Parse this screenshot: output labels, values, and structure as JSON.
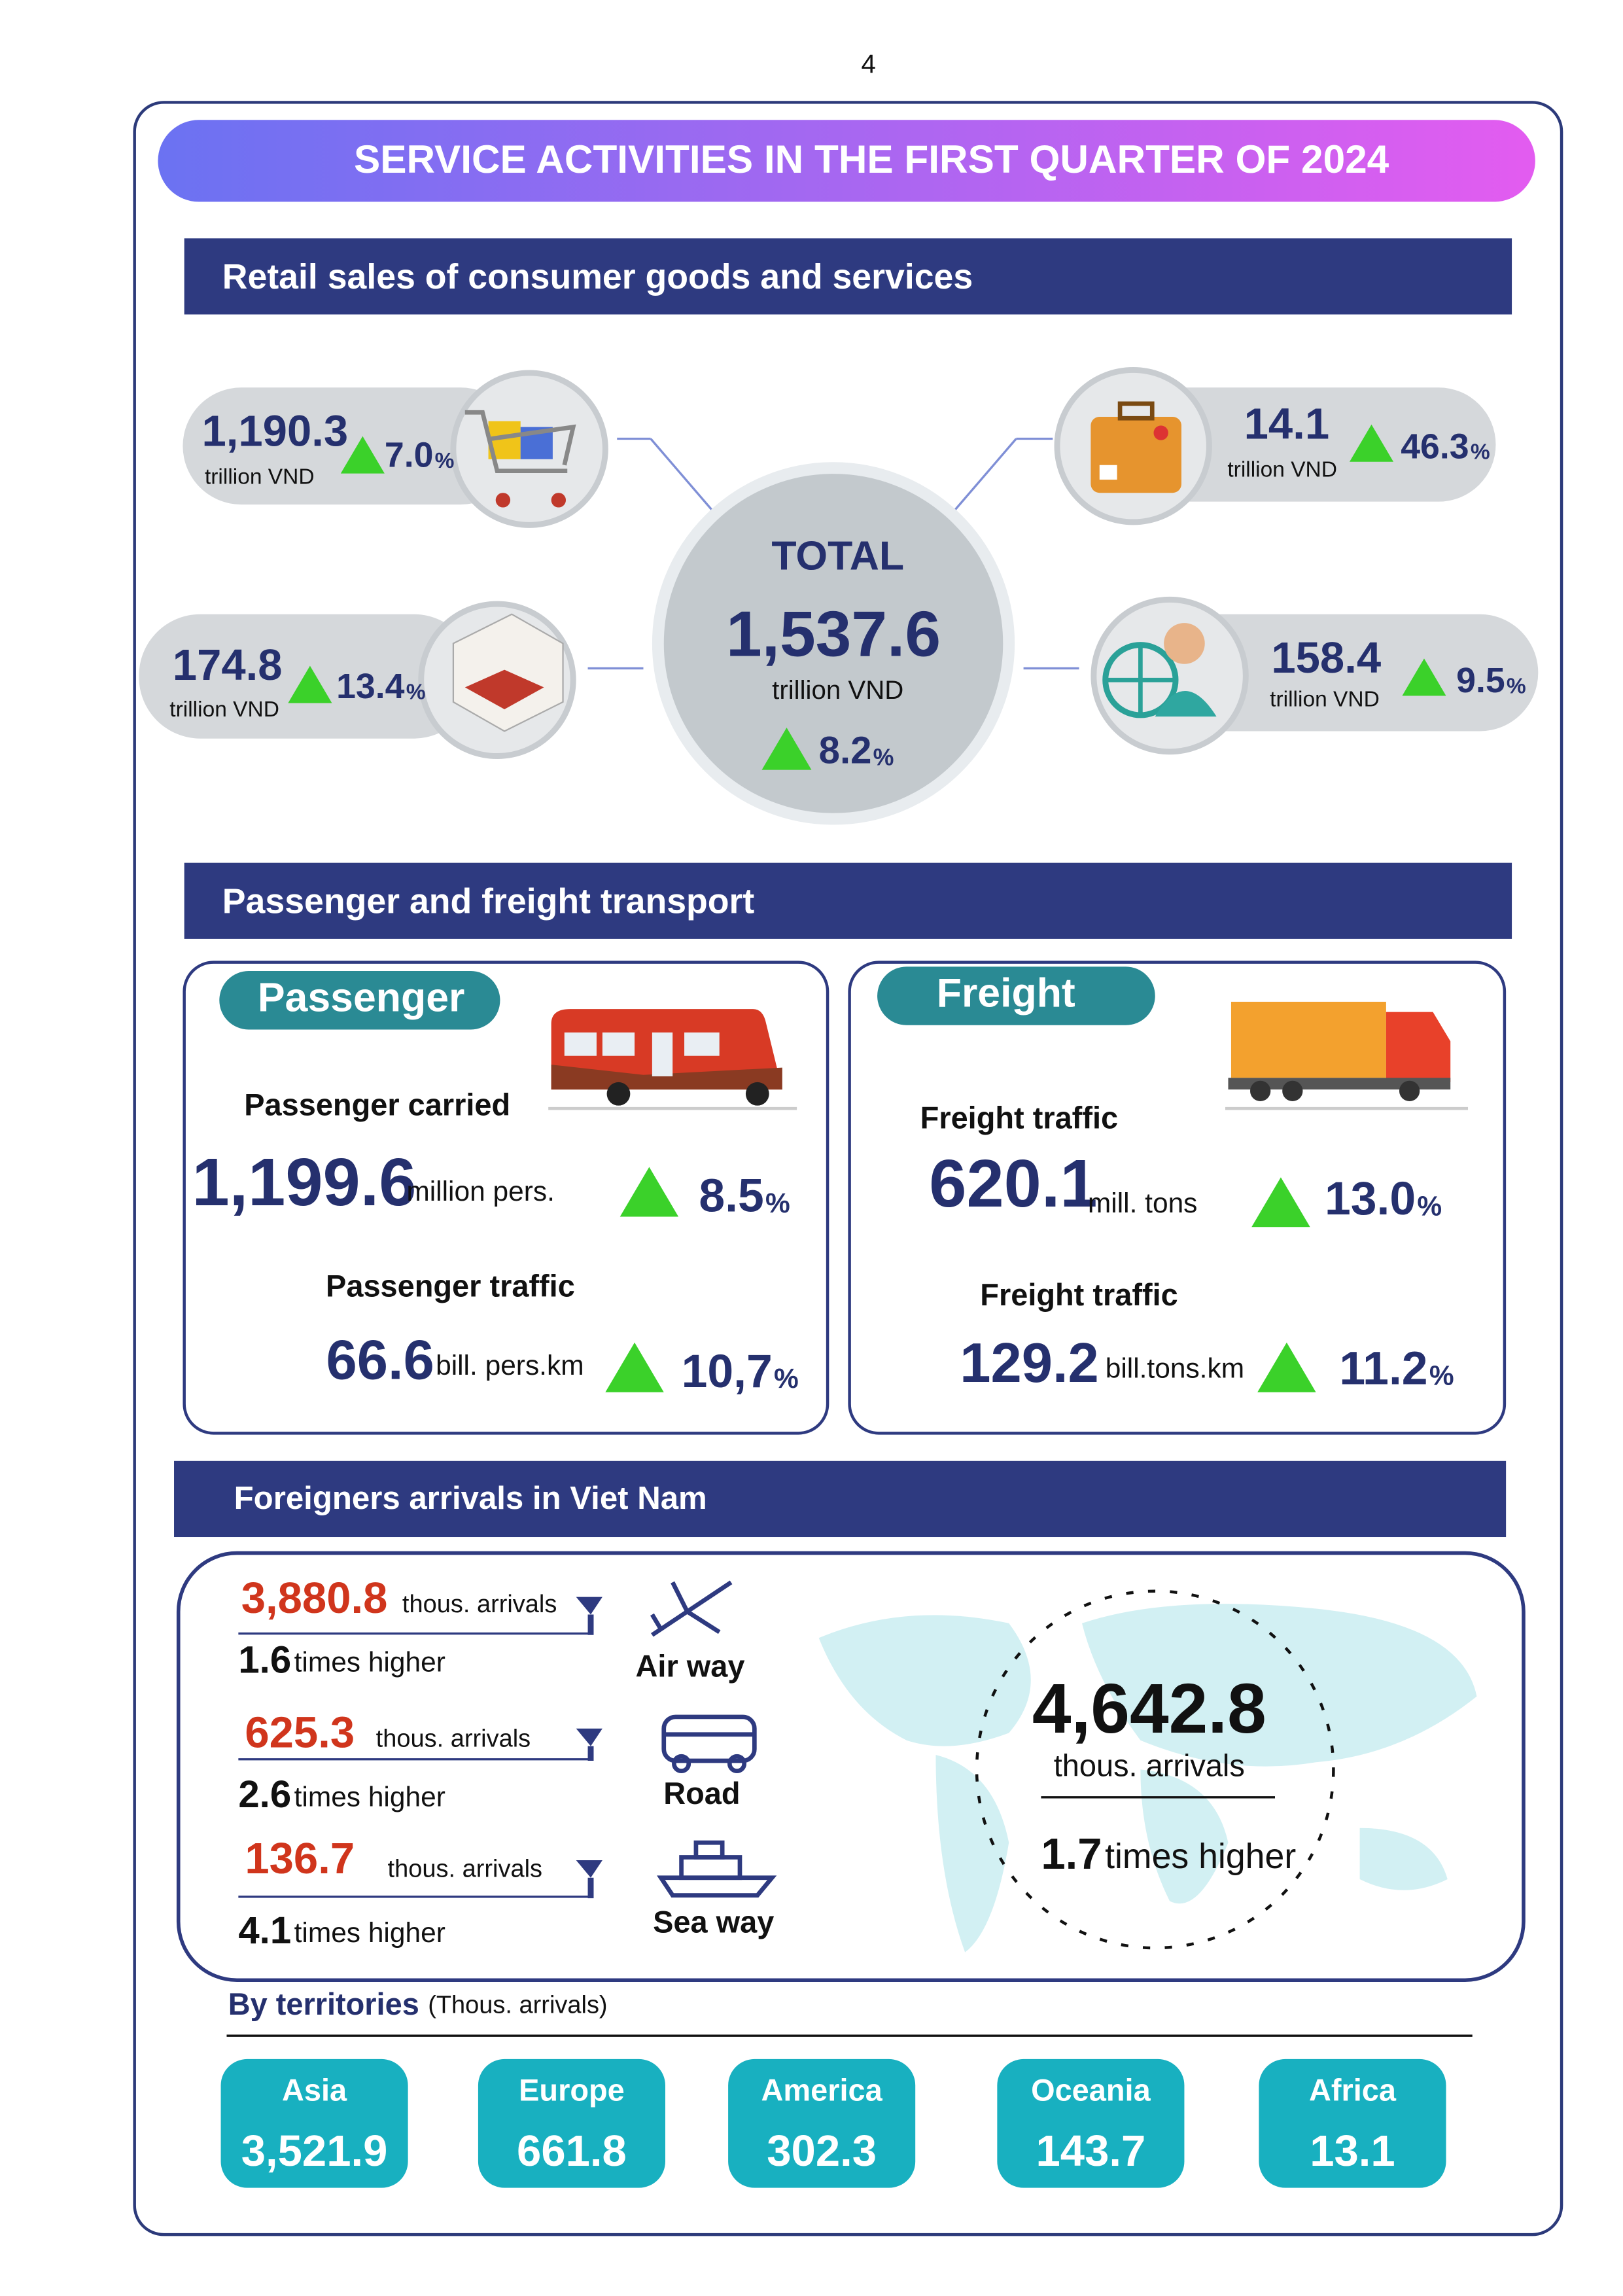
{
  "page_number": "4",
  "title": "SERVICE ACTIVITIES IN THE FIRST QUARTER OF 2024",
  "retail": {
    "heading": "Retail sales of consumer goods and services",
    "total": {
      "label": "TOTAL",
      "value": "1,537.6",
      "unit": "trillion VND",
      "change": "8.2",
      "change_unit": "%"
    },
    "items": [
      {
        "value": "1,190.3",
        "unit": "trillion VND",
        "change": "7.0",
        "change_unit": "%"
      },
      {
        "value": "174.8",
        "unit": "trillion VND",
        "change": "13.4",
        "change_unit": "%"
      },
      {
        "value": "14.1",
        "unit": "trillion VND",
        "change": "46.3",
        "change_unit": "%"
      },
      {
        "value": "158.4",
        "unit": "trillion VND",
        "change": "9.5",
        "change_unit": "%"
      }
    ]
  },
  "transport": {
    "heading": "Passenger and freight transport",
    "passenger": {
      "label": "Passenger",
      "items": [
        {
          "label": "Passenger carried",
          "value": "1,199.6",
          "unit": "million pers.",
          "change": "8.5",
          "change_unit": "%"
        },
        {
          "label": "Passenger traffic",
          "value": "66.6",
          "unit": "bill. pers.km",
          "change": "10,7",
          "change_unit": "%"
        }
      ]
    },
    "freight": {
      "label": "Freight",
      "items": [
        {
          "label": "Freight traffic",
          "value": "620.1",
          "unit": "mill. tons",
          "change": "13.0",
          "change_unit": "%"
        },
        {
          "label": "Freight traffic",
          "value": "129.2",
          "unit": "bill.tons.km",
          "change": "11.2",
          "change_unit": "%"
        }
      ]
    }
  },
  "arrivals": {
    "heading": "Foreigners arrivals in Viet Nam",
    "modes": [
      {
        "value": "3,880.8",
        "unit": "thous. arrivals",
        "times": "1.6",
        "times_label": "times higher",
        "mode": "Air way"
      },
      {
        "value": "625.3",
        "unit": "thous. arrivals",
        "times": "2.6",
        "times_label": "times higher",
        "mode": "Road"
      },
      {
        "value": "136.7",
        "unit": "thous. arrivals",
        "times": "4.1",
        "times_label": "times higher",
        "mode": "Sea way"
      }
    ],
    "total": {
      "value": "4,642.8",
      "unit": "thous. arrivals",
      "times": "1.7",
      "times_label": "times higher"
    },
    "territories": {
      "label": "By territories",
      "unit": "(Thous. arrivals)",
      "items": [
        {
          "name": "Asia",
          "value": "3,521.9"
        },
        {
          "name": "Europe",
          "value": "661.8"
        },
        {
          "name": "America",
          "value": "302.3"
        },
        {
          "name": "Oceania",
          "value": "143.7"
        },
        {
          "name": "Africa",
          "value": "13.1"
        }
      ]
    }
  }
}
